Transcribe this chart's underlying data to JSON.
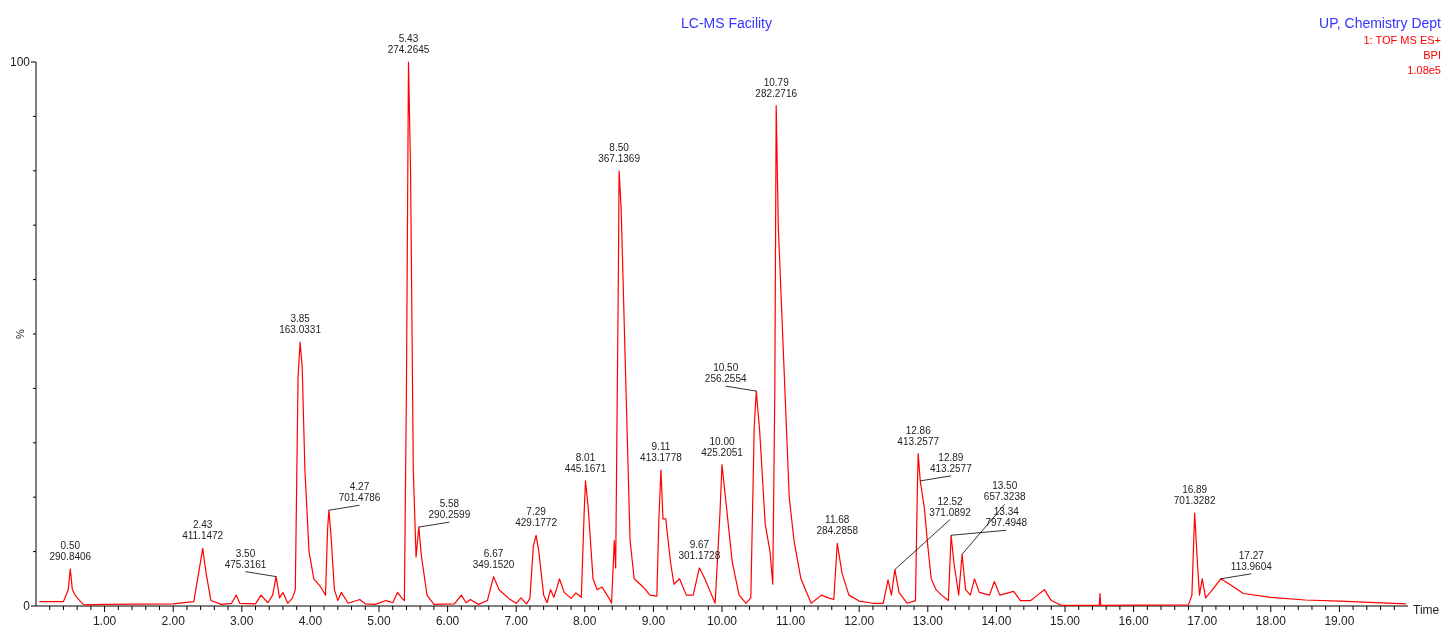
{
  "chart_data": {
    "type": "line",
    "title": "LC-MS Facility",
    "subtitle": "UP, Chemistry Dept",
    "xlabel": "Time",
    "ylabel": "%",
    "xlim": [
      0,
      20
    ],
    "ylim": [
      0,
      100
    ],
    "xticks": [
      {
        "value": 0.2,
        "label": null
      },
      {
        "value": 0.4,
        "label": null
      },
      {
        "value": 0.6,
        "label": null
      },
      {
        "value": 0.8,
        "label": null
      },
      {
        "value": 1,
        "label": "1.00"
      },
      {
        "value": 1.2,
        "label": null
      },
      {
        "value": 1.4,
        "label": null
      },
      {
        "value": 1.6,
        "label": null
      },
      {
        "value": 1.8,
        "label": null
      },
      {
        "value": 2,
        "label": "2.00"
      },
      {
        "value": 2.2,
        "label": null
      },
      {
        "value": 2.4,
        "label": null
      },
      {
        "value": 2.6,
        "label": null
      },
      {
        "value": 2.8,
        "label": null
      },
      {
        "value": 3,
        "label": "3.00"
      },
      {
        "value": 3.2,
        "label": null
      },
      {
        "value": 3.4,
        "label": null
      },
      {
        "value": 3.6,
        "label": null
      },
      {
        "value": 3.8,
        "label": null
      },
      {
        "value": 4,
        "label": "4.00"
      },
      {
        "value": 4.2,
        "label": null
      },
      {
        "value": 4.4,
        "label": null
      },
      {
        "value": 4.6,
        "label": null
      },
      {
        "value": 4.8,
        "label": null
      },
      {
        "value": 5,
        "label": "5.00"
      },
      {
        "value": 5.2,
        "label": null
      },
      {
        "value": 5.4,
        "label": null
      },
      {
        "value": 5.6,
        "label": null
      },
      {
        "value": 5.8,
        "label": null
      },
      {
        "value": 6,
        "label": "6.00"
      },
      {
        "value": 6.2,
        "label": null
      },
      {
        "value": 6.4,
        "label": null
      },
      {
        "value": 6.6,
        "label": null
      },
      {
        "value": 6.8,
        "label": null
      },
      {
        "value": 7,
        "label": "7.00"
      },
      {
        "value": 7.2,
        "label": null
      },
      {
        "value": 7.4,
        "label": null
      },
      {
        "value": 7.6,
        "label": null
      },
      {
        "value": 7.8,
        "label": null
      },
      {
        "value": 8,
        "label": "8.00"
      },
      {
        "value": 8.2,
        "label": null
      },
      {
        "value": 8.4,
        "label": null
      },
      {
        "value": 8.6,
        "label": null
      },
      {
        "value": 8.8,
        "label": null
      },
      {
        "value": 9,
        "label": "9.00"
      },
      {
        "value": 9.2,
        "label": null
      },
      {
        "value": 9.4,
        "label": null
      },
      {
        "value": 9.6,
        "label": null
      },
      {
        "value": 9.8,
        "label": null
      },
      {
        "value": 10,
        "label": "10.00"
      },
      {
        "value": 10.2,
        "label": null
      },
      {
        "value": 10.4,
        "label": null
      },
      {
        "value": 10.6,
        "label": null
      },
      {
        "value": 10.8,
        "label": null
      },
      {
        "value": 11,
        "label": "11.00"
      },
      {
        "value": 11.2,
        "label": null
      },
      {
        "value": 11.4,
        "label": null
      },
      {
        "value": 11.6,
        "label": null
      },
      {
        "value": 11.8,
        "label": null
      },
      {
        "value": 12,
        "label": "12.00"
      },
      {
        "value": 12.2,
        "label": null
      },
      {
        "value": 12.4,
        "label": null
      },
      {
        "value": 12.6,
        "label": null
      },
      {
        "value": 12.8,
        "label": null
      },
      {
        "value": 13,
        "label": "13.00"
      },
      {
        "value": 13.2,
        "label": null
      },
      {
        "value": 13.4,
        "label": null
      },
      {
        "value": 13.6,
        "label": null
      },
      {
        "value": 13.8,
        "label": null
      },
      {
        "value": 14,
        "label": "14.00"
      },
      {
        "value": 14.2,
        "label": null
      },
      {
        "value": 14.4,
        "label": null
      },
      {
        "value": 14.6,
        "label": null
      },
      {
        "value": 14.8,
        "label": null
      },
      {
        "value": 15,
        "label": "15.00"
      },
      {
        "value": 15.2,
        "label": null
      },
      {
        "value": 15.4,
        "label": null
      },
      {
        "value": 15.6,
        "label": null
      },
      {
        "value": 15.8,
        "label": null
      },
      {
        "value": 16,
        "label": "16.00"
      },
      {
        "value": 16.2,
        "label": null
      },
      {
        "value": 16.4,
        "label": null
      },
      {
        "value": 16.6,
        "label": null
      },
      {
        "value": 16.8,
        "label": null
      },
      {
        "value": 17,
        "label": "17.00"
      },
      {
        "value": 17.2,
        "label": null
      },
      {
        "value": 17.4,
        "label": null
      },
      {
        "value": 17.6,
        "label": null
      },
      {
        "value": 17.8,
        "label": null
      },
      {
        "value": 18,
        "label": "18.00"
      },
      {
        "value": 18.2,
        "label": null
      },
      {
        "value": 18.4,
        "label": null
      },
      {
        "value": 18.6,
        "label": null
      },
      {
        "value": 18.8,
        "label": null
      },
      {
        "value": 19,
        "label": "19.00"
      },
      {
        "value": 19.2,
        "label": null
      },
      {
        "value": 19.4,
        "label": null
      },
      {
        "value": 19.6,
        "label": null
      },
      {
        "value": 19.8,
        "label": null
      }
    ],
    "yticks": [
      0,
      {
        "value": 10,
        "label": null
      },
      {
        "value": 20,
        "label": null
      },
      {
        "value": 30,
        "label": null
      },
      {
        "value": 40,
        "label": null
      },
      {
        "value": 50,
        "label": null
      },
      {
        "value": 60,
        "label": null
      },
      {
        "value": 70,
        "label": null
      },
      {
        "value": 80,
        "label": null
      },
      {
        "value": 90,
        "label": null
      },
      100
    ],
    "series": [
      {
        "color": "#ff0000",
        "x": [
          0.05,
          0.4,
          0.47,
          0.5,
          0.53,
          0.58,
          0.65,
          0.7,
          1.0,
          2.0,
          2.3,
          2.37,
          2.43,
          2.48,
          2.55,
          2.7,
          2.85,
          2.92,
          2.97,
          3.2,
          3.28,
          3.38,
          3.45,
          3.5,
          3.55,
          3.6,
          3.67,
          3.74,
          3.78,
          3.82,
          3.85,
          3.88,
          3.92,
          3.98,
          4.05,
          4.15,
          4.22,
          4.25,
          4.27,
          4.3,
          4.35,
          4.4,
          4.45,
          4.55,
          4.72,
          4.8,
          4.95,
          5.1,
          5.2,
          5.27,
          5.33,
          5.37,
          5.4,
          5.43,
          5.46,
          5.5,
          5.54,
          5.58,
          5.62,
          5.7,
          5.8,
          6.1,
          6.2,
          6.27,
          6.33,
          6.45,
          6.58,
          6.67,
          6.75,
          6.9,
          7.0,
          7.07,
          7.15,
          7.2,
          7.25,
          7.29,
          7.33,
          7.4,
          7.45,
          7.5,
          7.55,
          7.6,
          7.63,
          7.7,
          7.8,
          7.87,
          7.95,
          7.99,
          8.01,
          8.05,
          8.12,
          8.18,
          8.25,
          8.35,
          8.39,
          8.43,
          8.45,
          8.49,
          8.5,
          8.53,
          8.6,
          8.66,
          8.72,
          8.85,
          8.95,
          9.05,
          9.08,
          9.11,
          9.14,
          9.18,
          9.25,
          9.3,
          9.38,
          9.48,
          9.58,
          9.67,
          9.75,
          9.85,
          9.9,
          9.97,
          10.0,
          10.05,
          10.15,
          10.25,
          10.35,
          10.42,
          10.47,
          10.5,
          10.55,
          10.63,
          10.7,
          10.74,
          10.77,
          10.79,
          10.82,
          10.9,
          10.98,
          11.05,
          11.15,
          11.3,
          11.45,
          11.55,
          11.63,
          11.68,
          11.75,
          11.85,
          12.0,
          12.2,
          12.35,
          12.42,
          12.47,
          12.52,
          12.58,
          12.7,
          12.82,
          12.85,
          12.86,
          12.89,
          12.95,
          13.0,
          13.05,
          13.12,
          13.2,
          13.3,
          13.34,
          13.38,
          13.45,
          13.5,
          13.55,
          13.62,
          13.68,
          13.75,
          13.9,
          13.97,
          14.05,
          14.25,
          14.35,
          14.5,
          14.6,
          14.7,
          14.8,
          14.95,
          15.5,
          15.51,
          15.52,
          16.8,
          16.85,
          16.89,
          16.93,
          16.96,
          17.0,
          17.05,
          17.15,
          17.27,
          17.4,
          17.6,
          18.0,
          18.5,
          19.0,
          19.97
        ],
        "values": [
          0.8,
          0.8,
          3,
          6.8,
          3,
          1.8,
          0.8,
          0.2,
          0.3,
          0.4,
          0.8,
          6,
          10.6,
          6,
          1,
          0.3,
          0.5,
          2,
          0.5,
          0.4,
          2,
          0.6,
          2,
          5.4,
          1.5,
          2.5,
          0.5,
          1.5,
          3,
          42,
          48.5,
          44,
          25,
          10,
          5,
          3.5,
          2,
          14,
          17.6,
          13,
          3,
          1,
          2.5,
          0.5,
          1.2,
          0.4,
          0.3,
          1,
          0.6,
          2.5,
          1.5,
          1,
          40,
          100,
          80,
          25,
          9,
          14.5,
          9,
          2,
          0.3,
          0.4,
          2,
          0.6,
          1.2,
          0.3,
          1,
          5.4,
          3,
          1.3,
          0.5,
          1.5,
          0.4,
          1.4,
          11,
          13,
          10,
          2,
          0.6,
          3,
          1.6,
          3.6,
          5,
          2.5,
          1.4,
          2.4,
          1.6,
          17,
          23,
          18,
          5,
          3,
          3.5,
          1.5,
          0.5,
          12,
          7,
          62,
          80,
          73,
          40,
          12,
          5,
          3.5,
          2,
          1.8,
          16,
          25,
          16,
          16,
          8,
          4,
          5,
          2,
          2,
          7,
          5,
          2,
          0.5,
          17,
          26,
          20,
          8,
          2,
          0.5,
          1.5,
          33,
          39.5,
          32,
          15,
          10,
          4,
          40,
          92,
          70,
          45,
          20,
          12,
          5,
          0.5,
          2,
          1.5,
          1.2,
          11.5,
          6,
          2,
          0.9,
          0.5,
          0.5,
          4.8,
          2,
          6.7,
          2.5,
          0.5,
          1,
          23,
          28,
          23,
          18,
          11,
          5,
          3,
          2,
          1,
          13,
          8,
          2,
          9.5,
          3,
          2,
          5,
          2.5,
          2,
          4.5,
          2,
          2.7,
          1,
          1,
          2,
          3,
          1,
          0.1,
          0.1,
          2.3,
          0.1,
          0.2,
          2,
          17.1,
          8,
          2,
          5,
          1.5,
          3,
          5,
          4,
          2.3,
          1.6,
          1.1,
          0.9,
          0.4
        ]
      }
    ],
    "annotations": [
      "1: TOF MS ES+",
      "BPI",
      "1.08e5",
      {
        "text": "0.50\n290.8406",
        "x": 0.5,
        "y": 6.8
      },
      {
        "text": "2.43\n411.1472",
        "x": 2.43,
        "y": 10.6
      },
      {
        "text": "3.50\n475.3161",
        "x": 3.5,
        "y": 5.4
      },
      {
        "text": "3.85\n163.0331",
        "x": 3.85,
        "y": 48.5
      },
      {
        "text": "4.27\n701.4786",
        "x": 4.27,
        "y": 17.6
      },
      {
        "text": "5.43\n274.2645",
        "x": 5.43,
        "y": 100
      },
      {
        "text": "5.58\n290.2599",
        "x": 5.58,
        "y": 14.5
      },
      {
        "text": "6.67\n349.1520",
        "x": 6.67,
        "y": 5.4
      },
      {
        "text": "7.29\n429.1772",
        "x": 7.29,
        "y": 13
      },
      {
        "text": "8.01\n445.1671",
        "x": 8.01,
        "y": 23
      },
      {
        "text": "8.50\n367.1369",
        "x": 8.5,
        "y": 80
      },
      {
        "text": "9.11\n413.1778",
        "x": 9.11,
        "y": 25
      },
      {
        "text": "9.67\n301.1728",
        "x": 9.67,
        "y": 7
      },
      {
        "text": "10.00\n425.2051",
        "x": 10.0,
        "y": 26
      },
      {
        "text": "10.50\n256.2554",
        "x": 10.5,
        "y": 39.5
      },
      {
        "text": "10.79\n282.2716",
        "x": 10.79,
        "y": 92
      },
      {
        "text": "11.68\n284.2858",
        "x": 11.68,
        "y": 11.5
      },
      {
        "text": "12.52\n371.0892",
        "x": 12.52,
        "y": 6.7
      },
      {
        "text": "12.86\n413.2577",
        "x": 12.86,
        "y": 28
      },
      {
        "text": "12.89\n413.2577",
        "x": 12.89,
        "y": 23
      },
      {
        "text": "13.34\n797.4948",
        "x": 13.34,
        "y": 13
      },
      {
        "text": "13.50\n657.3238",
        "x": 13.5,
        "y": 9.5
      },
      {
        "text": "16.89\n701.3282",
        "x": 16.89,
        "y": 17.1
      },
      {
        "text": "17.27\n113.9604",
        "x": 17.27,
        "y": 5
      }
    ]
  }
}
